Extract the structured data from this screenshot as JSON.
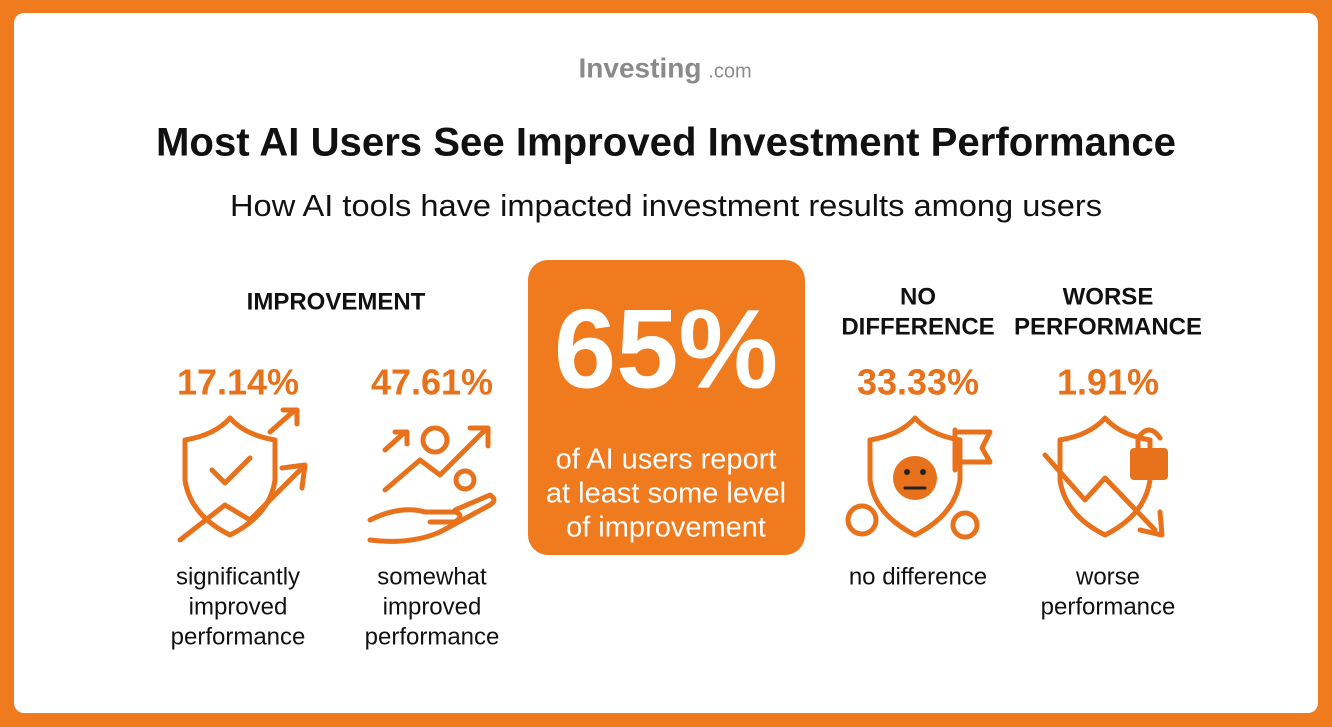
{
  "brand": {
    "name": "Investing",
    "suffix": ".com"
  },
  "title": "Most AI Users See Improved Investment Performance",
  "subtitle": "How AI tools have impacted investment results among users",
  "improvement": {
    "heading": "IMPROVEMENT",
    "items": [
      {
        "value": "17.14%",
        "label": [
          "significantly",
          "improved",
          "performance"
        ]
      },
      {
        "value": "47.61%",
        "label": [
          "somewhat",
          "improved",
          "performance"
        ]
      }
    ]
  },
  "highlight": {
    "value": "65%",
    "text": [
      "of AI users report",
      "at least some level",
      "of improvement"
    ]
  },
  "no_difference": {
    "heading": [
      "NO",
      "DIFFERENCE"
    ],
    "value": "33.33%",
    "label": [
      "no difference"
    ]
  },
  "worse": {
    "heading": [
      "WORSE",
      "PERFORMANCE"
    ],
    "value": "1.91%",
    "label": [
      "worse",
      "performance"
    ]
  }
}
